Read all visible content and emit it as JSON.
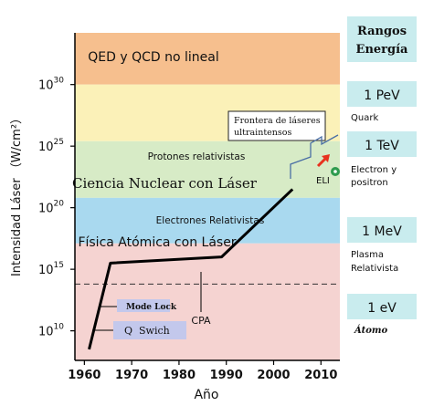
{
  "chart_data": {
    "type": "line",
    "xlabel": "Año",
    "ylabel": "Intensidad Láser （W/cm²）",
    "x_ticks": [
      "1960",
      "1970",
      "1980",
      "1990",
      "2000",
      "2010"
    ],
    "y_ticks": [
      {
        "value": 10,
        "base": "10",
        "exp": "10"
      },
      {
        "value": 15,
        "base": "10",
        "exp": "15"
      },
      {
        "value": 20,
        "base": "10",
        "exp": "20"
      },
      {
        "value": 25,
        "base": "10",
        "exp": "25"
      },
      {
        "value": 30,
        "base": "10",
        "exp": "30"
      }
    ],
    "xlim": [
      1958,
      2014
    ],
    "ylim": [
      7.6,
      34.2
    ],
    "y_scale": "log10",
    "series": [
      {
        "name": "",
        "x": [
          1961,
          1965.5,
          1989,
          2004
        ],
        "y": [
          8.5,
          15.5,
          16.0,
          21.5
        ]
      }
    ],
    "threshold_line": {
      "y": 13.8,
      "style": "dashed"
    },
    "bands": [
      {
        "label": "QED y QCD no lineal",
        "y0": 30,
        "y1": 34.2,
        "color": "#f6bf8e"
      },
      {
        "label": "",
        "y0": 25.4,
        "y1": 30,
        "color": "#fbf1b8"
      },
      {
        "label": "Ciencia Nuclear con Láser",
        "y0": 20.8,
        "y1": 25.4,
        "color": "#d7ebc6"
      },
      {
        "label": "Física Atómica con Láser",
        "y0": 17.1,
        "y1": 20.8,
        "color": "#a9d9ef"
      },
      {
        "label": "",
        "y0": 7.6,
        "y1": 17.1,
        "color": "#f5d3d1"
      }
    ],
    "annotations": [
      {
        "text": "Protones relativistas"
      },
      {
        "text": "Electrones Relativistas"
      },
      {
        "text": "Frontera de láseres ultraintensos"
      },
      {
        "text": "ELI"
      },
      {
        "text": "CPA"
      },
      {
        "text": "Mode Lock"
      },
      {
        "text": "Q  Swich"
      }
    ],
    "energy_ranges": {
      "title": [
        "Rangos",
        "Energía"
      ],
      "items": [
        {
          "value": "1 PeV",
          "label": [
            "Quark"
          ]
        },
        {
          "value": "1 TeV",
          "label": [
            "Electron y",
            "positron"
          ]
        },
        {
          "value": "1 MeV",
          "label": [
            "Plasma",
            "Relativista"
          ]
        },
        {
          "value": "1 eV",
          "label": [
            "Átomo"
          ]
        }
      ]
    },
    "colors": {
      "line": "#000000",
      "panel": "#c9ecee",
      "eli_marker": "#2e9b4e",
      "eli_arrow": "#e8321e",
      "bracket": "#4a6fa5",
      "label_box": "#c3c8ec"
    }
  }
}
